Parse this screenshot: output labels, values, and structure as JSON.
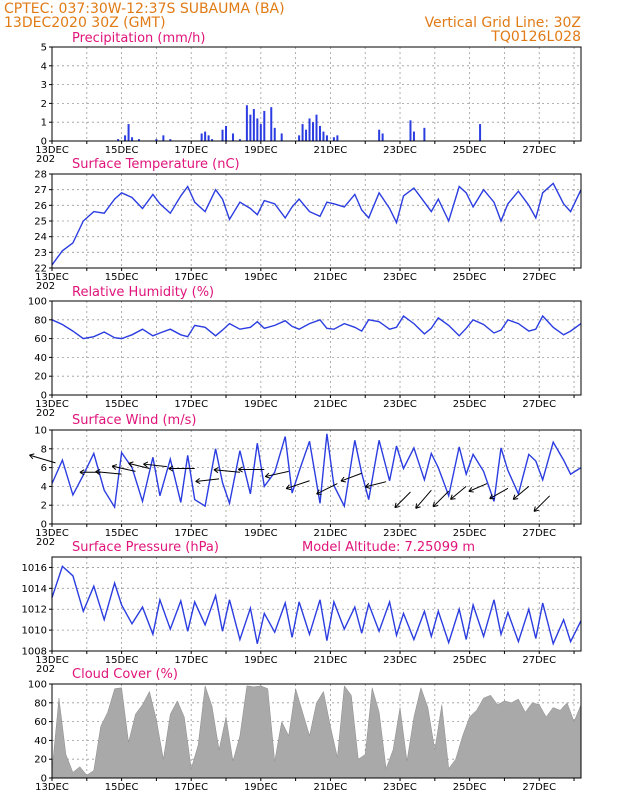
{
  "header": {
    "line1_left": "CPTEC:   037:30W-12:37S   SUBAUMA (BA)",
    "line2_left": "13DEC2020 30Z (GMT)",
    "line1_right": "Vertical Grid Line: 30Z",
    "line2_right": "TQ0126L028"
  },
  "x_ticks": [
    "13DEC",
    "15DEC",
    "17DEC",
    "19DEC",
    "21DEC",
    "23DEC",
    "25DEC",
    "27DEC"
  ],
  "year_stub": "202",
  "colors": {
    "header": "#e07b16",
    "title": "#e0147a",
    "series": "#2b3de0",
    "cloud": "#a9a9a9"
  },
  "chart_data": [
    {
      "type": "bar",
      "title": "Precipitation (mm/h)",
      "ylim": [
        0,
        5
      ],
      "yticks": [
        0,
        1,
        2,
        3,
        4,
        5
      ],
      "x_days": [
        14.9,
        15.1,
        15.2,
        15.3,
        15.5,
        16.0,
        16.2,
        16.4,
        17.3,
        17.4,
        17.5,
        17.6,
        17.9,
        18.0,
        18.2,
        18.4,
        18.6,
        18.7,
        18.8,
        18.9,
        19.0,
        19.1,
        19.3,
        19.4,
        19.6,
        20.1,
        20.2,
        20.3,
        20.4,
        20.5,
        20.6,
        20.7,
        20.8,
        20.9,
        21.1,
        21.2,
        22.4,
        22.5,
        23.3,
        23.4,
        23.7,
        25.3
      ],
      "values": [
        0.1,
        0.3,
        0.9,
        0.2,
        0.1,
        0.1,
        0.3,
        0.1,
        0.4,
        0.5,
        0.3,
        0.1,
        0.6,
        0.8,
        0.4,
        0.1,
        1.9,
        1.4,
        1.7,
        1.2,
        0.9,
        1.6,
        1.8,
        0.7,
        0.4,
        0.3,
        0.9,
        0.6,
        1.2,
        1.0,
        1.4,
        0.8,
        0.5,
        0.3,
        0.2,
        0.3,
        0.6,
        0.4,
        1.1,
        0.5,
        0.7,
        0.9
      ]
    },
    {
      "type": "line",
      "title": "Surface Temperature (nC)",
      "ylim": [
        22,
        28
      ],
      "yticks": [
        22,
        23,
        24,
        25,
        26,
        27,
        28
      ],
      "x_days": [
        13.0,
        13.3,
        13.6,
        13.9,
        14.2,
        14.5,
        14.8,
        15.0,
        15.3,
        15.6,
        15.9,
        16.1,
        16.4,
        16.7,
        16.9,
        17.1,
        17.4,
        17.7,
        17.9,
        18.1,
        18.4,
        18.7,
        18.9,
        19.1,
        19.4,
        19.7,
        19.9,
        20.1,
        20.4,
        20.7,
        20.9,
        21.1,
        21.4,
        21.7,
        21.9,
        22.1,
        22.4,
        22.7,
        22.9,
        23.1,
        23.4,
        23.7,
        23.9,
        24.1,
        24.4,
        24.7,
        24.9,
        25.1,
        25.4,
        25.7,
        25.9,
        26.1,
        26.4,
        26.7,
        26.9,
        27.1,
        27.4,
        27.7,
        27.9,
        28.2
      ],
      "values": [
        22.2,
        23.1,
        23.6,
        25.0,
        25.6,
        25.5,
        26.4,
        26.8,
        26.5,
        25.8,
        26.7,
        26.1,
        25.5,
        26.6,
        27.2,
        26.2,
        25.6,
        27.0,
        26.4,
        25.1,
        26.2,
        25.8,
        25.4,
        26.3,
        26.1,
        25.2,
        25.9,
        26.4,
        25.6,
        25.3,
        26.2,
        26.1,
        25.9,
        26.7,
        25.7,
        25.2,
        26.8,
        25.8,
        24.9,
        26.6,
        27.1,
        26.2,
        25.6,
        26.4,
        25.0,
        27.2,
        26.8,
        25.9,
        27.0,
        26.2,
        25.0,
        26.1,
        26.9,
        26.0,
        25.2,
        26.8,
        27.4,
        26.1,
        25.6,
        27.0
      ]
    },
    {
      "type": "line",
      "title": "Relative Humidity (%)",
      "ylim": [
        0,
        100
      ],
      "yticks": [
        0,
        20,
        40,
        60,
        80,
        100
      ],
      "x_days": [
        13.0,
        13.3,
        13.6,
        13.9,
        14.2,
        14.5,
        14.8,
        15.0,
        15.3,
        15.6,
        15.9,
        16.1,
        16.4,
        16.7,
        16.9,
        17.1,
        17.4,
        17.7,
        17.9,
        18.1,
        18.4,
        18.7,
        18.9,
        19.1,
        19.4,
        19.7,
        19.9,
        20.1,
        20.4,
        20.7,
        20.9,
        21.1,
        21.4,
        21.7,
        21.9,
        22.1,
        22.4,
        22.7,
        22.9,
        23.1,
        23.4,
        23.7,
        23.9,
        24.1,
        24.4,
        24.7,
        24.9,
        25.1,
        25.4,
        25.7,
        25.9,
        26.1,
        26.4,
        26.7,
        26.9,
        27.1,
        27.4,
        27.7,
        27.9,
        28.2
      ],
      "values": [
        80,
        75,
        68,
        60,
        62,
        67,
        61,
        60,
        64,
        70,
        63,
        66,
        70,
        64,
        62,
        74,
        72,
        63,
        69,
        76,
        70,
        72,
        78,
        71,
        74,
        79,
        73,
        70,
        76,
        80,
        71,
        70,
        76,
        72,
        68,
        80,
        78,
        70,
        72,
        84,
        76,
        65,
        71,
        82,
        74,
        63,
        71,
        80,
        75,
        66,
        69,
        80,
        76,
        68,
        70,
        84,
        72,
        64,
        68,
        76
      ]
    },
    {
      "type": "line",
      "title": "Surface Wind (m/s)",
      "ylim": [
        0,
        10
      ],
      "yticks": [
        0,
        2,
        4,
        6,
        8,
        10
      ],
      "x_days": [
        13.0,
        13.3,
        13.6,
        13.9,
        14.2,
        14.5,
        14.8,
        15.0,
        15.3,
        15.6,
        15.9,
        16.1,
        16.4,
        16.7,
        16.9,
        17.1,
        17.4,
        17.7,
        17.9,
        18.1,
        18.4,
        18.7,
        18.9,
        19.1,
        19.4,
        19.7,
        19.9,
        20.1,
        20.4,
        20.7,
        20.9,
        21.1,
        21.4,
        21.7,
        21.9,
        22.1,
        22.4,
        22.7,
        22.9,
        23.1,
        23.4,
        23.7,
        23.9,
        24.1,
        24.4,
        24.7,
        24.9,
        25.1,
        25.4,
        25.7,
        25.9,
        26.1,
        26.4,
        26.7,
        26.9,
        27.1,
        27.4,
        27.7,
        27.9,
        28.2
      ],
      "values": [
        4.3,
        6.8,
        3.1,
        5.2,
        7.5,
        3.6,
        1.8,
        7.6,
        6.0,
        2.4,
        7.1,
        3.0,
        6.9,
        2.3,
        7.3,
        2.6,
        1.9,
        8.0,
        4.4,
        2.2,
        7.8,
        3.2,
        8.6,
        4.0,
        5.5,
        9.3,
        3.3,
        5.6,
        8.8,
        2.2,
        9.6,
        4.1,
        1.9,
        8.9,
        5.4,
        2.6,
        8.9,
        4.6,
        8.3,
        5.9,
        8.1,
        4.7,
        7.5,
        6.0,
        3.0,
        8.2,
        5.3,
        7.4,
        5.6,
        2.4,
        8.1,
        5.7,
        3.2,
        7.4,
        6.7,
        4.7,
        8.7,
        6.8,
        5.3,
        6.0
      ],
      "vectors_x_days": [
        13.1,
        14.4,
        15.0,
        15.4,
        15.8,
        16.3,
        17.1,
        17.8,
        18.4,
        19.1,
        19.8,
        20.4,
        21.2,
        21.9,
        22.6,
        23.3,
        23.9,
        24.4,
        24.9,
        25.5,
        26.1,
        26.7,
        27.3
      ],
      "vectors_y": [
        6.5,
        5.5,
        5.3,
        5.6,
        5.9,
        6.1,
        5.9,
        4.8,
        5.5,
        5.8,
        5.6,
        4.6,
        4.3,
        5.4,
        4.5,
        3.4,
        3.6,
        3.5,
        4.0,
        4.3,
        3.8,
        4.0,
        3.0
      ],
      "vectors_u": [
        -1.0,
        -0.8,
        -1.0,
        -0.9,
        -0.8,
        -0.9,
        -1.0,
        -0.9,
        -1.0,
        -1.0,
        -0.9,
        -0.9,
        -0.8,
        -0.8,
        -0.8,
        -0.6,
        -0.6,
        -0.6,
        -0.6,
        -0.7,
        -0.7,
        -0.6,
        -0.6
      ],
      "vectors_v": [
        0.3,
        0.0,
        0.1,
        0.2,
        0.2,
        0.1,
        0.0,
        -0.1,
        0.1,
        0.0,
        -0.2,
        -0.3,
        -0.4,
        -0.3,
        -0.2,
        -0.6,
        -0.7,
        -0.6,
        -0.5,
        -0.3,
        -0.4,
        -0.5,
        -0.6
      ]
    },
    {
      "type": "line",
      "title": "Surface Pressure (hPa)",
      "annotation": "Model Altitude: 7.25099 m",
      "ylim": [
        1008,
        1017
      ],
      "yticks": [
        1008,
        1010,
        1012,
        1014,
        1016
      ],
      "x_days": [
        13.0,
        13.3,
        13.6,
        13.9,
        14.2,
        14.5,
        14.8,
        15.0,
        15.3,
        15.6,
        15.9,
        16.1,
        16.4,
        16.7,
        16.9,
        17.1,
        17.4,
        17.7,
        17.9,
        18.1,
        18.4,
        18.7,
        18.9,
        19.1,
        19.4,
        19.7,
        19.9,
        20.1,
        20.4,
        20.7,
        20.9,
        21.1,
        21.4,
        21.7,
        21.9,
        22.1,
        22.4,
        22.7,
        22.9,
        23.1,
        23.4,
        23.7,
        23.9,
        24.1,
        24.4,
        24.7,
        24.9,
        25.1,
        25.4,
        25.7,
        25.9,
        26.1,
        26.4,
        26.7,
        26.9,
        27.1,
        27.4,
        27.7,
        27.9,
        28.2
      ],
      "values": [
        1013.1,
        1016.1,
        1015.2,
        1011.8,
        1014.2,
        1011.0,
        1014.5,
        1012.4,
        1010.6,
        1012.2,
        1009.6,
        1012.9,
        1010.1,
        1012.8,
        1009.9,
        1012.7,
        1010.5,
        1013.3,
        1009.9,
        1012.9,
        1009.1,
        1012.1,
        1008.7,
        1011.6,
        1009.8,
        1012.6,
        1009.3,
        1012.7,
        1009.6,
        1012.9,
        1009.0,
        1012.7,
        1010.1,
        1012.2,
        1009.7,
        1012.5,
        1009.9,
        1012.7,
        1009.5,
        1011.6,
        1009.1,
        1011.8,
        1009.4,
        1011.8,
        1008.8,
        1012.0,
        1009.1,
        1012.4,
        1009.4,
        1012.9,
        1009.6,
        1011.7,
        1008.9,
        1012.0,
        1009.2,
        1012.6,
        1008.7,
        1011.0,
        1008.9,
        1010.9
      ]
    },
    {
      "type": "area",
      "title": "Cloud Cover (%)",
      "ylim": [
        0,
        100
      ],
      "yticks": [
        0,
        20,
        40,
        60,
        80,
        100
      ],
      "x_days": [
        13.0,
        13.2,
        13.4,
        13.6,
        13.8,
        14.0,
        14.2,
        14.4,
        14.6,
        14.8,
        15.0,
        15.2,
        15.4,
        15.6,
        15.8,
        16.0,
        16.2,
        16.4,
        16.6,
        16.8,
        17.0,
        17.2,
        17.4,
        17.6,
        17.8,
        18.0,
        18.2,
        18.4,
        18.6,
        18.8,
        19.0,
        19.2,
        19.4,
        19.6,
        19.8,
        20.0,
        20.2,
        20.4,
        20.6,
        20.8,
        21.0,
        21.2,
        21.4,
        21.6,
        21.8,
        22.0,
        22.2,
        22.4,
        22.6,
        22.8,
        23.0,
        23.2,
        23.4,
        23.6,
        23.8,
        24.0,
        24.2,
        24.4,
        24.6,
        24.8,
        25.0,
        25.2,
        25.4,
        25.6,
        25.8,
        26.0,
        26.2,
        26.4,
        26.6,
        26.8,
        27.0,
        27.2,
        27.4,
        27.6,
        27.8,
        28.0,
        28.2
      ],
      "values": [
        8,
        85,
        25,
        6,
        12,
        3,
        8,
        55,
        70,
        95,
        96,
        38,
        68,
        78,
        92,
        62,
        20,
        68,
        82,
        65,
        10,
        35,
        98,
        76,
        30,
        65,
        18,
        45,
        98,
        97,
        98,
        95,
        18,
        60,
        45,
        95,
        70,
        45,
        80,
        92,
        55,
        22,
        98,
        88,
        20,
        25,
        96,
        70,
        10,
        30,
        75,
        18,
        65,
        96,
        75,
        30,
        78,
        10,
        20,
        45,
        65,
        72,
        85,
        88,
        78,
        82,
        80,
        84,
        70,
        80,
        78,
        65,
        75,
        72,
        80,
        60,
        78
      ]
    }
  ]
}
